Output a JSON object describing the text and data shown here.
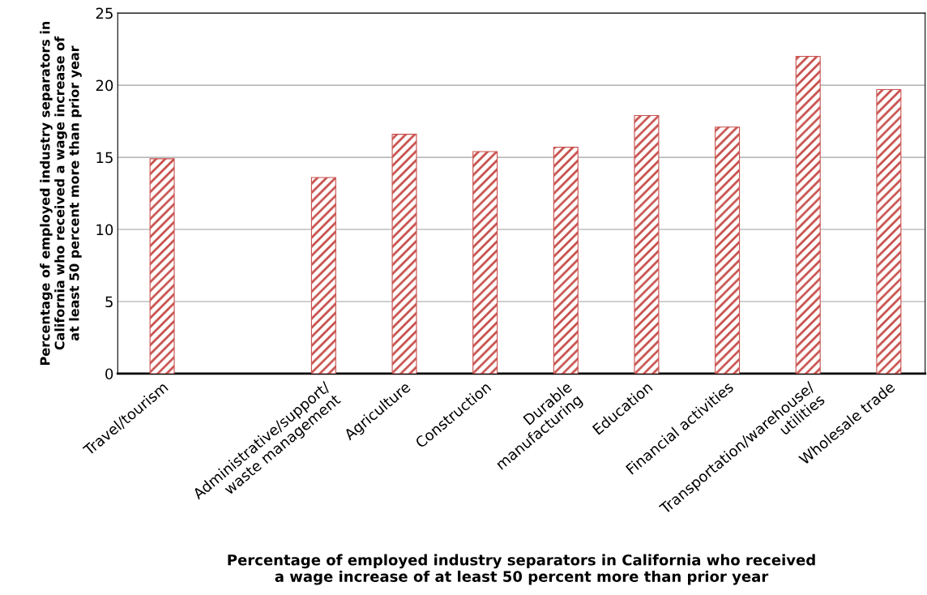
{
  "chart_data": {
    "type": "bar",
    "xlabel": "Percentage of employed industry separators in California who received\na wage increase of at least 50 percent more than prior year",
    "ylabel": "Percentage of employed industry separators in\nCalifornia who received a wage increase of\nat least 50 percent more than prior year",
    "categories": [
      "Travel/tourism",
      null,
      "Administrative/support/\nwaste management",
      "Agriculture",
      "Construction",
      "Durable\nmanufacturing",
      "Education",
      "Financial activities",
      "Transportation/warehouse/\nutilities",
      "Wholesale trade"
    ],
    "values": [
      14.9,
      null,
      13.6,
      16.6,
      15.4,
      15.7,
      17.9,
      17.1,
      22.0,
      19.7
    ],
    "color": "#c8504c",
    "ylim": [
      0,
      25
    ],
    "yticks": [
      0,
      5,
      10,
      15,
      20,
      25
    ],
    "grid": "y"
  }
}
